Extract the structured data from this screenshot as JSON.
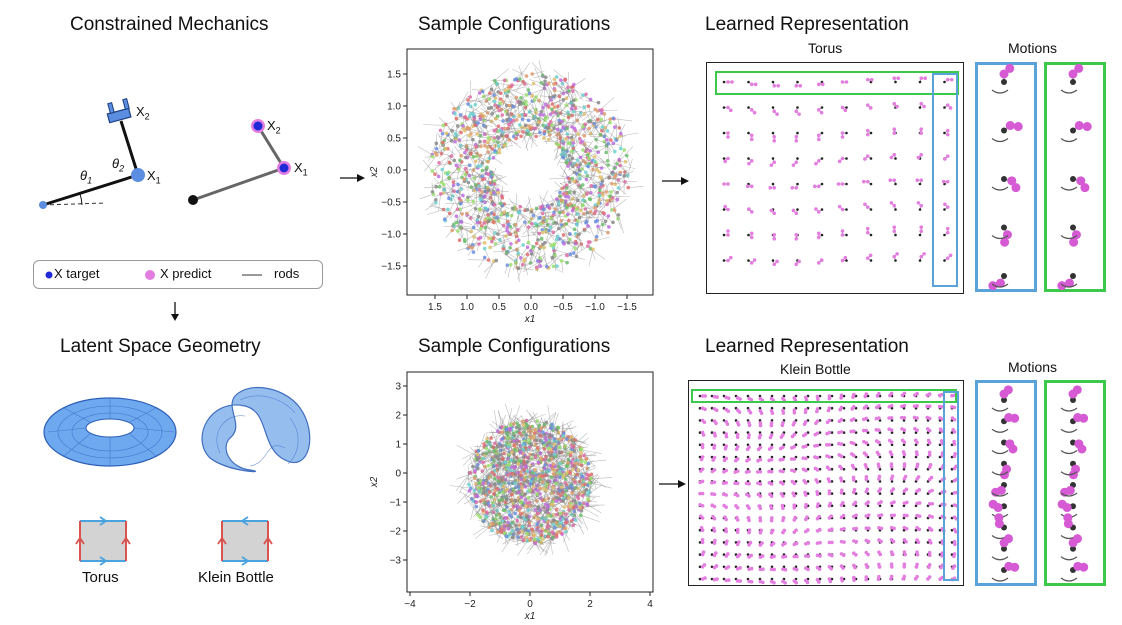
{
  "headings": {
    "constrained": "Constrained Mechanics",
    "latent": "Latent Space Geometry",
    "samples_top": "Sample Configurations",
    "samples_bottom": "Sample Configurations",
    "learned_top": "Learned Representation",
    "learned_bottom": "Learned Representation",
    "torus_sub": "Torus",
    "klein_sub": "Klein Bottle",
    "motions_top": "Motions",
    "motions_bottom": "Motions"
  },
  "mechanics": {
    "x2": "X",
    "x2_sub": "2",
    "x1": "X",
    "x1_sub": "1",
    "theta1": "θ",
    "theta1_sub": "1",
    "theta2": "θ",
    "theta2_sub": "2",
    "x2b": "X",
    "x2b_sub": "2",
    "x1b": "X",
    "x1b_sub": "1"
  },
  "legend": {
    "target": "X target",
    "predict": "X predict",
    "rods": "rods"
  },
  "geometry": {
    "torus_label": "Torus",
    "klein_label": "Klein Bottle"
  },
  "plot_top": {
    "xlabel": "x",
    "xlabel_sub": "1",
    "ylabel": "x",
    "ylabel_sub": "2",
    "xticks": [
      "1.5",
      "1.0",
      "0.5",
      "0.0",
      "−0.5",
      "−1.0",
      "−1.5"
    ],
    "yticks": [
      "1.5",
      "1.0",
      "0.5",
      "0.0",
      "−0.5",
      "−1.0",
      "−1.5"
    ]
  },
  "plot_bottom": {
    "xlabel": "x",
    "xlabel_sub": "1",
    "ylabel": "x",
    "ylabel_sub": "2",
    "xticks": [
      "−4",
      "−2",
      "0",
      "2",
      "4"
    ],
    "yticks": [
      "3",
      "2",
      "1",
      "0",
      "−1",
      "−2",
      "−3"
    ]
  },
  "colors": {
    "target": "#1f2ad6",
    "predict": "#e37ee0",
    "joint": "#5b8ee0",
    "rod": "#777777",
    "green_box": "#3cc84a",
    "blue_box": "#5aa3d8",
    "edge_red": "#d9534f",
    "edge_blue": "#4aa3df"
  },
  "chart_data": [
    {
      "type": "scatter",
      "title": "Sample Configurations",
      "xlabel": "x1",
      "ylabel": "x2",
      "xlim": [
        2.0,
        -2.0
      ],
      "ylim": [
        -1.7,
        1.7
      ],
      "shape": "annulus (torus samples)"
    },
    {
      "type": "scatter",
      "title": "Sample Configurations",
      "xlabel": "x1",
      "ylabel": "x2",
      "xlim": [
        -4.5,
        4.5
      ],
      "ylim": [
        -3.5,
        3.5
      ],
      "shape": "disk (klein bottle samples)"
    }
  ]
}
